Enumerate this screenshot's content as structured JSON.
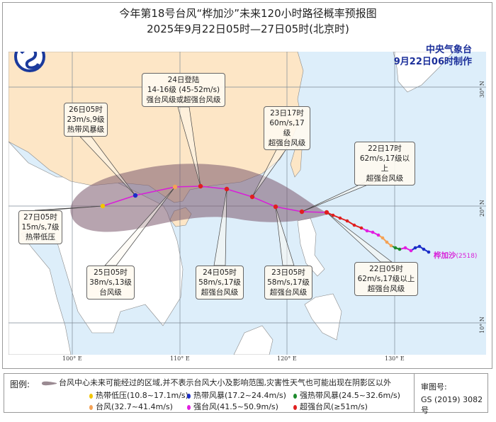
{
  "title": "今年第18号台风“桦加沙”未来120小时路径概率预报图",
  "subtitle": "2025年9月22日05时—27日05时(北京时)",
  "agency": "中央气象台",
  "made_time": "9月22日06时制作",
  "typhoon_name": "桦加沙",
  "typhoon_id": "(2518)",
  "axes": {
    "lon": [
      "100° E",
      "110° E",
      "120° E",
      "130° E"
    ],
    "lat": [
      "30° N",
      "20° N",
      "10° N"
    ]
  },
  "forecast_points": [
    {
      "id": "p22-05",
      "category": "super",
      "lines": [
        "22日05时",
        "62m/s,17级以上",
        "超强台风级"
      ]
    },
    {
      "id": "p22-17",
      "category": "super",
      "lines": [
        "22日17时",
        "62m/s,17级以上",
        "超强台风级"
      ]
    },
    {
      "id": "p23-05",
      "category": "super",
      "lines": [
        "23日05时",
        "58m/s,17级",
        "超强台风级"
      ]
    },
    {
      "id": "p23-17",
      "category": "super",
      "lines": [
        "23日17时",
        "60m/s,17级",
        "超强台风级"
      ]
    },
    {
      "id": "p24-05",
      "category": "super",
      "lines": [
        "24日05时",
        "58m/s,17级",
        "超强台风级"
      ]
    },
    {
      "id": "p24-landing",
      "category": "super",
      "lines": [
        "24日登陆",
        "14-16级 (45-52m/s)",
        "强台风级或超强台风级"
      ]
    },
    {
      "id": "p25-05",
      "category": "typhoon",
      "lines": [
        "25日05时",
        "38m/s,13级",
        "台风级"
      ]
    },
    {
      "id": "p26-05",
      "category": "ts",
      "lines": [
        "26日05时",
        "23m/s,9级",
        "热带风暴级"
      ]
    },
    {
      "id": "p27-05",
      "category": "td",
      "lines": [
        "27日05时",
        "15m/s,7级",
        "热带低压"
      ]
    }
  ],
  "colors": {
    "td": "#f2c500",
    "ts": "#1b2dc8",
    "sts": "#1d8a2c",
    "typhoon": "#f4a256",
    "sty": "#e21ee0",
    "super": "#e01f1f",
    "ocean": "#ddeefa",
    "china": "#fde6c6",
    "other_land": "#ffffff",
    "cone": "#7c5a6e",
    "track": "#d81fd8"
  },
  "legend": {
    "label": "图例:",
    "cone_text": "台风中心未来可能经过的区域,并不表示台风大小及影响范围,灾害性天气也可能出现在阴影区以外",
    "items": [
      {
        "key": "td",
        "text": "热带低压(10.8~17.1m/s)"
      },
      {
        "key": "ts",
        "text": "热带风暴(17.2~24.4m/s)"
      },
      {
        "key": "sts",
        "text": "强热带风暴(24.5~32.6m/s)"
      },
      {
        "key": "typhoon",
        "text": "台风(32.7~41.4m/s)"
      },
      {
        "key": "sty",
        "text": "强台风(41.5~50.9m/s)"
      },
      {
        "key": "super",
        "text": "超强台风(≥51m/s)"
      }
    ],
    "review_label": "审图号:",
    "review_number": "GS (2019) 3082号"
  }
}
